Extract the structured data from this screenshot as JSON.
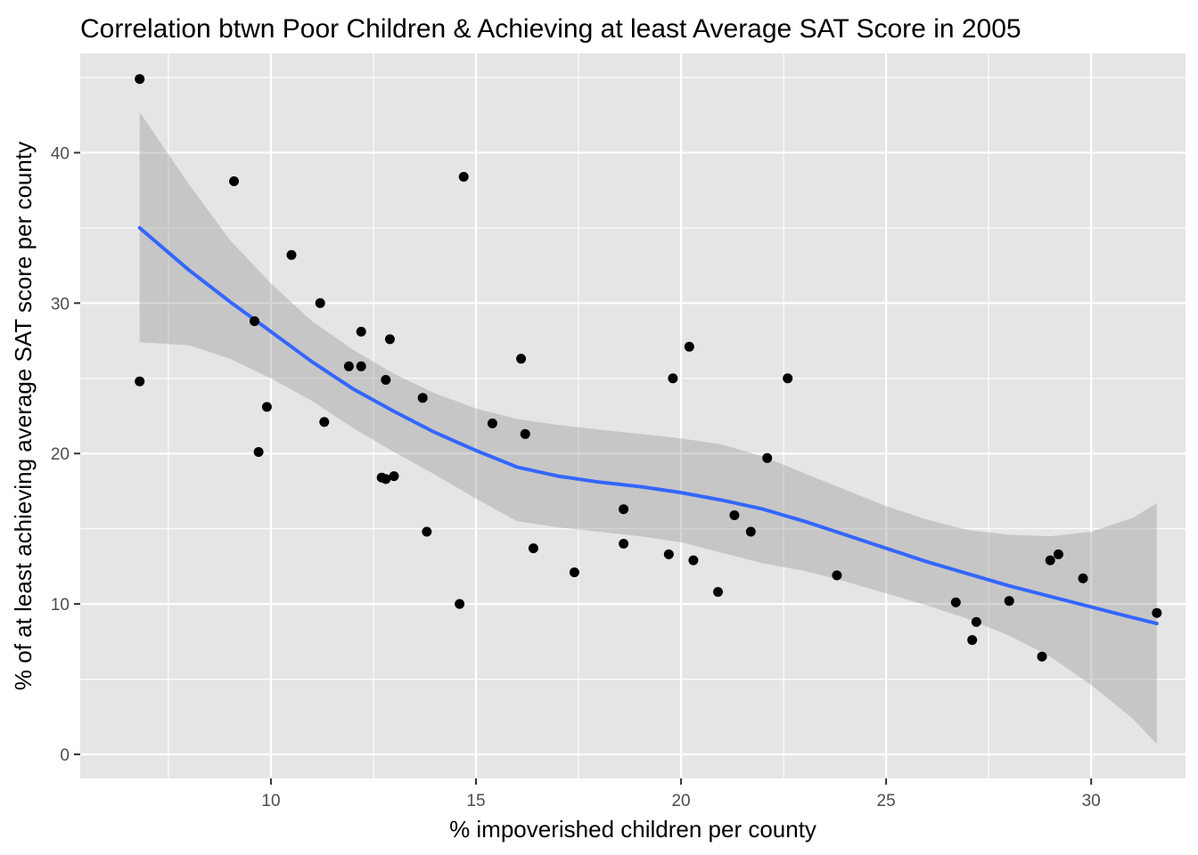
{
  "chart_data": {
    "type": "scatter",
    "title": "Correlation btwn Poor Children & Achieving at least Average SAT Score in 2005",
    "xlabel": "% impoverished children per county",
    "ylabel": "% of at least achieving average SAT score per county",
    "xlim": [
      5.35,
      32.3
    ],
    "ylim": [
      -1.6,
      46.6
    ],
    "x_ticks": [
      10,
      15,
      20,
      25,
      30
    ],
    "y_ticks": [
      0,
      10,
      20,
      30,
      40
    ],
    "grid": true,
    "colors": {
      "panel": "#e5e5e5",
      "grid": "#ffffff",
      "points": "#000000",
      "smooth_line": "#3366ff",
      "band": "#999999"
    },
    "points": [
      {
        "x": 6.8,
        "y": 44.9
      },
      {
        "x": 6.8,
        "y": 24.8
      },
      {
        "x": 9.1,
        "y": 38.1
      },
      {
        "x": 9.6,
        "y": 28.8
      },
      {
        "x": 9.7,
        "y": 20.1
      },
      {
        "x": 9.9,
        "y": 23.1
      },
      {
        "x": 10.5,
        "y": 33.2
      },
      {
        "x": 11.2,
        "y": 30.0
      },
      {
        "x": 11.3,
        "y": 22.1
      },
      {
        "x": 11.9,
        "y": 25.8
      },
      {
        "x": 12.2,
        "y": 28.1
      },
      {
        "x": 12.2,
        "y": 25.8
      },
      {
        "x": 12.7,
        "y": 18.4
      },
      {
        "x": 12.8,
        "y": 24.9
      },
      {
        "x": 12.8,
        "y": 18.3
      },
      {
        "x": 12.9,
        "y": 27.6
      },
      {
        "x": 13.0,
        "y": 18.5
      },
      {
        "x": 13.7,
        "y": 23.7
      },
      {
        "x": 13.8,
        "y": 14.8
      },
      {
        "x": 14.6,
        "y": 10.0
      },
      {
        "x": 14.7,
        "y": 38.4
      },
      {
        "x": 15.4,
        "y": 22.0
      },
      {
        "x": 16.1,
        "y": 26.3
      },
      {
        "x": 16.2,
        "y": 21.3
      },
      {
        "x": 16.4,
        "y": 13.7
      },
      {
        "x": 17.4,
        "y": 12.1
      },
      {
        "x": 18.6,
        "y": 16.3
      },
      {
        "x": 18.6,
        "y": 14.0
      },
      {
        "x": 19.7,
        "y": 13.3
      },
      {
        "x": 19.8,
        "y": 25.0
      },
      {
        "x": 20.2,
        "y": 27.1
      },
      {
        "x": 20.3,
        "y": 12.9
      },
      {
        "x": 20.9,
        "y": 10.8
      },
      {
        "x": 21.3,
        "y": 15.9
      },
      {
        "x": 21.7,
        "y": 14.8
      },
      {
        "x": 22.1,
        "y": 19.7
      },
      {
        "x": 22.6,
        "y": 25.0
      },
      {
        "x": 23.8,
        "y": 11.9
      },
      {
        "x": 26.7,
        "y": 10.1
      },
      {
        "x": 27.1,
        "y": 7.6
      },
      {
        "x": 27.2,
        "y": 8.8
      },
      {
        "x": 28.0,
        "y": 10.2
      },
      {
        "x": 28.8,
        "y": 6.5
      },
      {
        "x": 29.0,
        "y": 12.9
      },
      {
        "x": 29.2,
        "y": 13.3
      },
      {
        "x": 29.8,
        "y": 11.7
      },
      {
        "x": 31.6,
        "y": 9.4
      }
    ],
    "smooth": {
      "x": [
        6.8,
        8.0,
        9.0,
        10.0,
        11.0,
        12.0,
        13.0,
        14.0,
        15.0,
        16.0,
        17.0,
        18.0,
        19.0,
        20.0,
        21.0,
        22.0,
        23.0,
        24.0,
        25.0,
        26.0,
        27.0,
        28.0,
        29.0,
        30.0,
        31.0,
        31.6
      ],
      "y": [
        35.0,
        32.2,
        30.1,
        28.1,
        26.1,
        24.3,
        22.8,
        21.4,
        20.2,
        19.1,
        18.5,
        18.1,
        17.8,
        17.4,
        16.9,
        16.3,
        15.5,
        14.6,
        13.7,
        12.8,
        12.0,
        11.2,
        10.5,
        9.8,
        9.1,
        8.7
      ],
      "upper": [
        42.7,
        37.9,
        34.2,
        31.3,
        28.8,
        26.9,
        25.3,
        24.0,
        23.0,
        22.3,
        21.9,
        21.6,
        21.3,
        21.0,
        20.6,
        19.8,
        18.7,
        17.6,
        16.5,
        15.6,
        14.9,
        14.6,
        14.5,
        14.8,
        15.7,
        16.7
      ],
      "lower": [
        27.4,
        27.2,
        26.3,
        25.0,
        23.5,
        21.7,
        20.1,
        18.6,
        17.0,
        15.5,
        15.1,
        14.8,
        14.5,
        14.1,
        13.4,
        12.7,
        12.2,
        11.5,
        10.7,
        9.9,
        9.0,
        7.9,
        6.5,
        4.6,
        2.4,
        0.7
      ]
    }
  }
}
